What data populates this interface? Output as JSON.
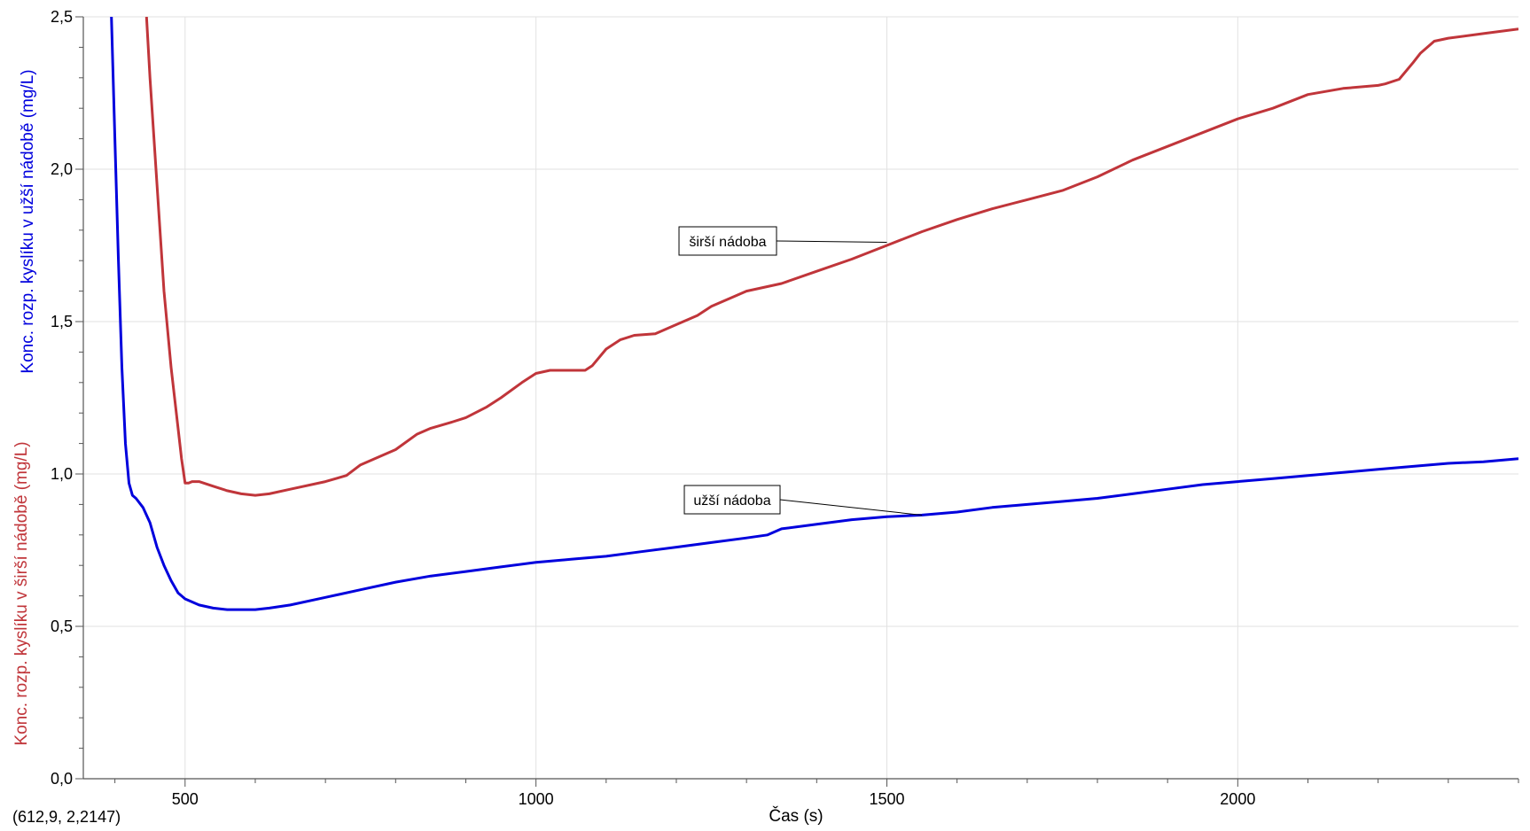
{
  "readout": "(612,9, 2,2147)",
  "colors": {
    "narrow": "#0000dd",
    "wide": "#c0353a",
    "grid": "#e2e2e2",
    "axis": "#555555"
  },
  "chart_data": {
    "type": "line",
    "title": "",
    "xlabel": "Čas (s)",
    "ylabel_narrow": "Konc. rozp. kyslíku v užší nádobě (mg/L)",
    "ylabel_wide": "Konc. rozp. kyslíku v širší nádobě (mg/L)",
    "xlim": [
      355,
      2400
    ],
    "ylim": [
      0,
      2.5
    ],
    "grid": true,
    "x_major_ticks": [
      500,
      1000,
      1500,
      2000
    ],
    "x_major_tick_labels": [
      "500",
      "1000",
      "1500",
      "2000"
    ],
    "y_ticks": [
      0,
      0.5,
      1,
      1.5,
      2,
      2.5
    ],
    "y_tick_labels": [
      "0,0",
      "0,5",
      "1,0",
      "1,5",
      "2,0",
      "2,5"
    ],
    "series": [
      {
        "name": "užší nádoba",
        "color": "#0000dd",
        "x": [
          395,
          400,
          405,
          410,
          415,
          420,
          425,
          430,
          440,
          450,
          460,
          470,
          480,
          490,
          500,
          520,
          540,
          560,
          580,
          600,
          620,
          650,
          700,
          750,
          800,
          850,
          900,
          950,
          1000,
          1050,
          1100,
          1150,
          1200,
          1250,
          1300,
          1330,
          1350,
          1400,
          1450,
          1500,
          1550,
          1600,
          1650,
          1700,
          1750,
          1800,
          1850,
          1900,
          1950,
          2000,
          2050,
          2100,
          2150,
          2200,
          2250,
          2300,
          2350,
          2400
        ],
        "y": [
          2.5,
          2.1,
          1.7,
          1.35,
          1.1,
          0.97,
          0.93,
          0.92,
          0.89,
          0.84,
          0.76,
          0.7,
          0.65,
          0.61,
          0.59,
          0.57,
          0.56,
          0.555,
          0.555,
          0.555,
          0.56,
          0.57,
          0.595,
          0.62,
          0.645,
          0.665,
          0.68,
          0.695,
          0.71,
          0.72,
          0.73,
          0.745,
          0.76,
          0.775,
          0.79,
          0.8,
          0.82,
          0.835,
          0.85,
          0.86,
          0.865,
          0.875,
          0.89,
          0.9,
          0.91,
          0.92,
          0.935,
          0.95,
          0.965,
          0.975,
          0.985,
          0.995,
          1.005,
          1.015,
          1.025,
          1.035,
          1.04,
          1.05
        ]
      },
      {
        "name": "širší nádoba",
        "color": "#c0353a",
        "x": [
          445,
          450,
          460,
          470,
          480,
          490,
          495,
          500,
          505,
          510,
          520,
          540,
          560,
          580,
          600,
          620,
          650,
          700,
          730,
          750,
          780,
          800,
          830,
          850,
          880,
          900,
          930,
          950,
          980,
          1000,
          1020,
          1050,
          1070,
          1080,
          1100,
          1120,
          1140,
          1170,
          1200,
          1230,
          1250,
          1280,
          1300,
          1350,
          1400,
          1450,
          1500,
          1550,
          1600,
          1650,
          1700,
          1750,
          1800,
          1850,
          1900,
          1950,
          2000,
          2050,
          2100,
          2150,
          2200,
          2210,
          2230,
          2250,
          2260,
          2280,
          2300,
          2350,
          2400
        ],
        "y": [
          2.5,
          2.3,
          1.95,
          1.6,
          1.35,
          1.15,
          1.05,
          0.97,
          0.97,
          0.975,
          0.975,
          0.96,
          0.945,
          0.935,
          0.93,
          0.935,
          0.95,
          0.975,
          0.995,
          1.03,
          1.06,
          1.08,
          1.13,
          1.15,
          1.17,
          1.185,
          1.22,
          1.25,
          1.3,
          1.33,
          1.34,
          1.34,
          1.34,
          1.355,
          1.41,
          1.44,
          1.455,
          1.46,
          1.49,
          1.52,
          1.55,
          1.58,
          1.6,
          1.625,
          1.665,
          1.705,
          1.75,
          1.795,
          1.835,
          1.87,
          1.9,
          1.93,
          1.975,
          2.03,
          2.075,
          2.12,
          2.165,
          2.2,
          2.245,
          2.265,
          2.275,
          2.28,
          2.295,
          2.35,
          2.38,
          2.42,
          2.43,
          2.445,
          2.46
        ]
      }
    ],
    "annotations": [
      {
        "text": "širší nádoba",
        "series": "širší nádoba",
        "x": 1500,
        "y": 1.76
      },
      {
        "text": "užší nádoba",
        "series": "užší nádoba",
        "x": 1550,
        "y": 0.865
      }
    ]
  }
}
